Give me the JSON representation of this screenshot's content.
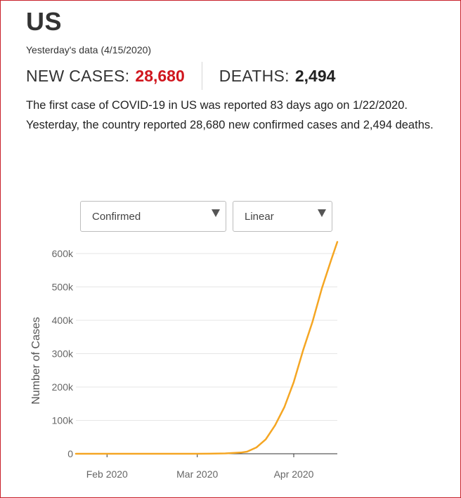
{
  "header": {
    "title": "US",
    "subtitle": "Yesterday's data (4/15/2020)"
  },
  "stats": {
    "new_cases_label": "NEW CASES:",
    "new_cases_value": "28,680",
    "deaths_label": "DEATHS:",
    "deaths_value": "2,494"
  },
  "summary": {
    "line1": "The first case of COVID-19 in US was reported 83 days ago on 1/22/2020.",
    "line2": "Yesterday, the country reported 28,680 new confirmed cases and 2,494 deaths."
  },
  "controls": {
    "metric_select": {
      "value": "Confirmed"
    },
    "scale_select": {
      "value": "Linear"
    }
  },
  "colors": {
    "accent_red": "#d0161e",
    "line": "#f5a623",
    "frame": "#c8202a"
  },
  "chart_data": {
    "type": "line",
    "title": "",
    "xlabel": "",
    "ylabel": "Number of Cases",
    "x_range": [
      "2020-01-22",
      "2020-04-15"
    ],
    "ylim": [
      0,
      650000
    ],
    "x_ticks": [
      {
        "label": "Feb 2020",
        "date": "2020-02-01"
      },
      {
        "label": "Mar 2020",
        "date": "2020-03-01"
      },
      {
        "label": "Apr 2020",
        "date": "2020-04-01"
      }
    ],
    "y_ticks": [
      {
        "label": "0",
        "value": 0
      },
      {
        "label": "100k",
        "value": 100000
      },
      {
        "label": "200k",
        "value": 200000
      },
      {
        "label": "300k",
        "value": 300000
      },
      {
        "label": "400k",
        "value": 400000
      },
      {
        "label": "500k",
        "value": 500000
      },
      {
        "label": "600k",
        "value": 600000
      }
    ],
    "grid": true,
    "series": [
      {
        "points": [
          {
            "x": "2020-01-22",
            "y": 1
          },
          {
            "x": "2020-02-01",
            "y": 8
          },
          {
            "x": "2020-02-15",
            "y": 15
          },
          {
            "x": "2020-03-01",
            "y": 75
          },
          {
            "x": "2020-03-05",
            "y": 220
          },
          {
            "x": "2020-03-10",
            "y": 1000
          },
          {
            "x": "2020-03-15",
            "y": 3500
          },
          {
            "x": "2020-03-17",
            "y": 6400
          },
          {
            "x": "2020-03-20",
            "y": 19000
          },
          {
            "x": "2020-03-23",
            "y": 43000
          },
          {
            "x": "2020-03-26",
            "y": 85000
          },
          {
            "x": "2020-03-29",
            "y": 140000
          },
          {
            "x": "2020-04-01",
            "y": 215000
          },
          {
            "x": "2020-04-04",
            "y": 310000
          },
          {
            "x": "2020-04-07",
            "y": 395000
          },
          {
            "x": "2020-04-10",
            "y": 495000
          },
          {
            "x": "2020-04-13",
            "y": 580000
          },
          {
            "x": "2020-04-15",
            "y": 635000
          }
        ]
      }
    ]
  }
}
